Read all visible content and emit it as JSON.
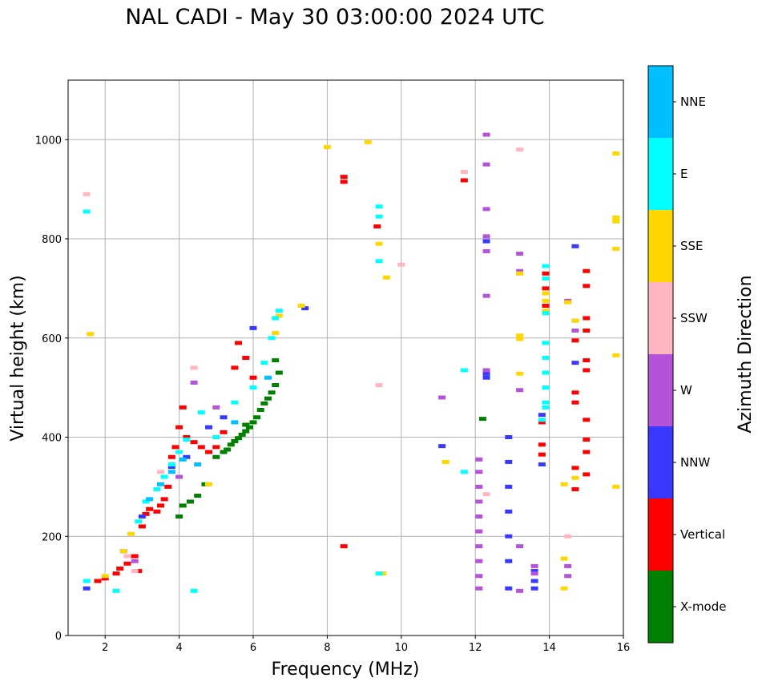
{
  "chart_data": {
    "type": "scatter",
    "title": "NAL CADI - May 30 03:00:00 2024 UTC",
    "xlabel": "Frequency (MHz)",
    "ylabel": "Virtual height (km)",
    "xlim": [
      1,
      16
    ],
    "ylim": [
      0,
      1120
    ],
    "xticks": [
      2,
      4,
      6,
      8,
      10,
      12,
      14,
      16
    ],
    "yticks": [
      0,
      200,
      400,
      600,
      800,
      1000
    ],
    "grid": true,
    "colorbar": {
      "title": "Azimuth Direction",
      "categories": [
        {
          "name": "X-mode",
          "color": "#008000"
        },
        {
          "name": "Vertical",
          "color": "#ff0000"
        },
        {
          "name": "NNW",
          "color": "#3838ff"
        },
        {
          "name": "W",
          "color": "#b452d8"
        },
        {
          "name": "SSW",
          "color": "#ffb6c1"
        },
        {
          "name": "SSE",
          "color": "#ffd700"
        },
        {
          "name": "E",
          "color": "#00ffff"
        },
        {
          "name": "NNE",
          "color": "#00bfff"
        }
      ]
    },
    "series": [
      {
        "name": "X-mode",
        "points": [
          [
            4.0,
            240
          ],
          [
            4.1,
            262
          ],
          [
            4.3,
            270
          ],
          [
            4.5,
            282
          ],
          [
            4.7,
            305
          ],
          [
            5.0,
            360
          ],
          [
            5.2,
            370
          ],
          [
            5.4,
            385
          ],
          [
            5.5,
            392
          ],
          [
            5.6,
            398
          ],
          [
            5.7,
            405
          ],
          [
            5.8,
            412
          ],
          [
            5.9,
            420
          ],
          [
            6.0,
            430
          ],
          [
            6.1,
            440
          ],
          [
            6.2,
            455
          ],
          [
            6.3,
            468
          ],
          [
            6.4,
            478
          ],
          [
            6.5,
            490
          ],
          [
            6.6,
            505
          ],
          [
            6.7,
            530
          ],
          [
            6.6,
            555
          ],
          [
            5.3,
            375
          ],
          [
            5.8,
            425
          ],
          [
            12.2,
            437
          ]
        ]
      },
      {
        "name": "Vertical",
        "points": [
          [
            1.8,
            110
          ],
          [
            2.0,
            115
          ],
          [
            2.3,
            125
          ],
          [
            2.4,
            135
          ],
          [
            2.6,
            145
          ],
          [
            2.8,
            160
          ],
          [
            2.9,
            130
          ],
          [
            3.0,
            220
          ],
          [
            3.1,
            245
          ],
          [
            3.2,
            255
          ],
          [
            3.4,
            250
          ],
          [
            3.5,
            262
          ],
          [
            3.6,
            275
          ],
          [
            3.7,
            300
          ],
          [
            3.8,
            360
          ],
          [
            3.9,
            380
          ],
          [
            4.0,
            420
          ],
          [
            4.1,
            460
          ],
          [
            4.2,
            400
          ],
          [
            4.4,
            390
          ],
          [
            4.6,
            380
          ],
          [
            4.8,
            370
          ],
          [
            5.0,
            380
          ],
          [
            5.2,
            410
          ],
          [
            5.5,
            540
          ],
          [
            5.6,
            590
          ],
          [
            5.8,
            560
          ],
          [
            6.0,
            520
          ],
          [
            8.45,
            925
          ],
          [
            8.45,
            915
          ],
          [
            8.45,
            180
          ],
          [
            9.35,
            825
          ],
          [
            11.7,
            918
          ],
          [
            13.9,
            730
          ],
          [
            13.9,
            700
          ],
          [
            13.9,
            665
          ],
          [
            13.8,
            430
          ],
          [
            13.8,
            385
          ],
          [
            13.8,
            365
          ],
          [
            14.7,
            595
          ],
          [
            14.7,
            490
          ],
          [
            14.7,
            470
          ],
          [
            14.7,
            338
          ],
          [
            14.7,
            295
          ],
          [
            15.0,
            735
          ],
          [
            15.0,
            705
          ],
          [
            15.0,
            640
          ],
          [
            15.0,
            615
          ],
          [
            15.0,
            555
          ],
          [
            15.0,
            535
          ],
          [
            15.0,
            435
          ],
          [
            15.0,
            395
          ],
          [
            15.0,
            370
          ],
          [
            15.0,
            325
          ]
        ]
      },
      {
        "name": "NNW",
        "points": [
          [
            1.5,
            95
          ],
          [
            2.5,
            170
          ],
          [
            3.0,
            240
          ],
          [
            3.8,
            340
          ],
          [
            4.2,
            360
          ],
          [
            4.8,
            420
          ],
          [
            5.2,
            440
          ],
          [
            6.0,
            620
          ],
          [
            7.4,
            660
          ],
          [
            11.1,
            382
          ],
          [
            12.3,
            520
          ],
          [
            12.3,
            528
          ],
          [
            12.3,
            795
          ],
          [
            12.9,
            400
          ],
          [
            12.9,
            350
          ],
          [
            12.9,
            300
          ],
          [
            12.9,
            250
          ],
          [
            12.9,
            200
          ],
          [
            12.9,
            150
          ],
          [
            12.9,
            95
          ],
          [
            13.6,
            130
          ],
          [
            13.6,
            110
          ],
          [
            13.6,
            95
          ],
          [
            13.8,
            445
          ],
          [
            13.8,
            345
          ],
          [
            14.7,
            785
          ],
          [
            14.7,
            550
          ]
        ]
      },
      {
        "name": "W",
        "points": [
          [
            2.8,
            150
          ],
          [
            4.0,
            320
          ],
          [
            4.4,
            510
          ],
          [
            5.0,
            460
          ],
          [
            11.1,
            480
          ],
          [
            12.1,
            355
          ],
          [
            12.1,
            330
          ],
          [
            12.1,
            300
          ],
          [
            12.1,
            270
          ],
          [
            12.1,
            240
          ],
          [
            12.1,
            210
          ],
          [
            12.1,
            180
          ],
          [
            12.1,
            150
          ],
          [
            12.1,
            120
          ],
          [
            12.1,
            95
          ],
          [
            12.3,
            1010
          ],
          [
            12.3,
            950
          ],
          [
            12.3,
            860
          ],
          [
            12.3,
            805
          ],
          [
            12.3,
            775
          ],
          [
            12.3,
            685
          ],
          [
            12.3,
            535
          ],
          [
            13.2,
            770
          ],
          [
            13.2,
            735
          ],
          [
            13.2,
            495
          ],
          [
            13.2,
            180
          ],
          [
            13.2,
            90
          ],
          [
            13.6,
            125
          ],
          [
            13.6,
            140
          ],
          [
            14.5,
            675
          ],
          [
            14.5,
            140
          ],
          [
            14.5,
            120
          ],
          [
            14.7,
            635
          ],
          [
            14.7,
            615
          ]
        ]
      },
      {
        "name": "SSW",
        "points": [
          [
            1.5,
            890
          ],
          [
            2.6,
            160
          ],
          [
            2.8,
            130
          ],
          [
            3.5,
            330
          ],
          [
            4.4,
            540
          ],
          [
            9.4,
            505
          ],
          [
            10.0,
            748
          ],
          [
            11.7,
            935
          ],
          [
            12.3,
            285
          ],
          [
            13.2,
            980
          ],
          [
            13.2,
            730
          ],
          [
            14.5,
            200
          ]
        ]
      },
      {
        "name": "SSE",
        "points": [
          [
            1.6,
            608
          ],
          [
            2.0,
            120
          ],
          [
            2.5,
            170
          ],
          [
            2.7,
            205
          ],
          [
            4.8,
            305
          ],
          [
            6.7,
            645
          ],
          [
            6.6,
            610
          ],
          [
            7.3,
            665
          ],
          [
            8.0,
            985
          ],
          [
            9.1,
            995
          ],
          [
            9.4,
            790
          ],
          [
            9.5,
            125
          ],
          [
            9.6,
            722
          ],
          [
            11.2,
            350
          ],
          [
            13.2,
            730
          ],
          [
            13.2,
            605
          ],
          [
            13.2,
            598
          ],
          [
            13.2,
            528
          ],
          [
            13.9,
            690
          ],
          [
            13.9,
            675
          ],
          [
            13.9,
            655
          ],
          [
            14.4,
            305
          ],
          [
            14.4,
            95
          ],
          [
            14.4,
            155
          ],
          [
            14.5,
            672
          ],
          [
            14.7,
            635
          ],
          [
            14.7,
            318
          ],
          [
            15.8,
            972
          ],
          [
            15.8,
            843
          ],
          [
            15.8,
            835
          ],
          [
            15.8,
            780
          ],
          [
            15.8,
            565
          ],
          [
            15.8,
            300
          ]
        ]
      },
      {
        "name": "E",
        "points": [
          [
            1.5,
            855
          ],
          [
            1.5,
            110
          ],
          [
            2.3,
            90
          ],
          [
            2.9,
            230
          ],
          [
            3.1,
            270
          ],
          [
            3.4,
            295
          ],
          [
            3.6,
            320
          ],
          [
            3.8,
            345
          ],
          [
            4.0,
            370
          ],
          [
            4.2,
            395
          ],
          [
            4.4,
            90
          ],
          [
            4.6,
            450
          ],
          [
            5.0,
            400
          ],
          [
            5.5,
            470
          ],
          [
            6.0,
            500
          ],
          [
            6.3,
            550
          ],
          [
            6.5,
            600
          ],
          [
            6.6,
            640
          ],
          [
            6.7,
            655
          ],
          [
            9.4,
            865
          ],
          [
            9.4,
            845
          ],
          [
            9.4,
            755
          ],
          [
            9.4,
            125
          ],
          [
            11.7,
            330
          ],
          [
            11.7,
            535
          ],
          [
            13.9,
            590
          ],
          [
            13.9,
            560
          ],
          [
            13.9,
            530
          ],
          [
            13.9,
            500
          ],
          [
            13.9,
            470
          ],
          [
            13.9,
            460
          ],
          [
            13.9,
            745
          ],
          [
            13.9,
            720
          ],
          [
            13.9,
            650
          ],
          [
            13.8,
            435
          ]
        ]
      },
      {
        "name": "NNE",
        "points": [
          [
            3.2,
            275
          ],
          [
            3.5,
            305
          ],
          [
            3.8,
            330
          ],
          [
            4.1,
            355
          ],
          [
            4.5,
            345
          ],
          [
            5.5,
            430
          ],
          [
            6.4,
            520
          ]
        ]
      }
    ]
  }
}
